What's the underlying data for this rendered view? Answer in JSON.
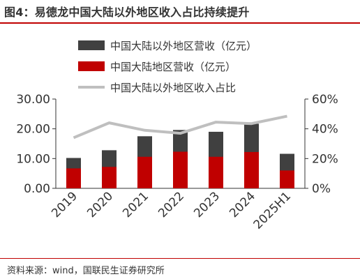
{
  "figure": {
    "title": "图4：易德龙中国大陆以外地区收入占比持续提升",
    "source": "资料来源：wind，国联民生证券研究所"
  },
  "colors": {
    "overseas": "#404040",
    "mainland": "#c00000",
    "share": "#bfbfbf",
    "accent_rule": "#c00000"
  },
  "chart_data": {
    "type": "bar",
    "stacked": true,
    "categories": [
      "2019",
      "2020",
      "2021",
      "2022",
      "2023",
      "2024",
      "2025H1"
    ],
    "series": [
      {
        "name": "中国大陆以外地区营收（亿元）",
        "kind": "bar",
        "axis": "left",
        "values": [
          10.2,
          12.8,
          17.5,
          19.6,
          19.0,
          21.7,
          11.6
        ]
      },
      {
        "name": "中国大陆地区营收（亿元）",
        "kind": "bar",
        "axis": "left",
        "values": [
          6.7,
          7.2,
          10.6,
          12.3,
          10.6,
          12.2,
          6.0
        ]
      },
      {
        "name": "中国大陆以外地区收入占比",
        "kind": "line",
        "axis": "right",
        "values": [
          0.34,
          0.44,
          0.39,
          0.37,
          0.445,
          0.435,
          0.485
        ]
      }
    ],
    "y_left": {
      "ticks": [
        "0.00",
        "10.00",
        "20.00",
        "30.00"
      ],
      "range": [
        0,
        30
      ]
    },
    "y_right": {
      "ticks": [
        "0%",
        "20%",
        "40%",
        "60%"
      ],
      "range": [
        0,
        0.6
      ]
    },
    "legend_position": "top",
    "grid": false
  }
}
